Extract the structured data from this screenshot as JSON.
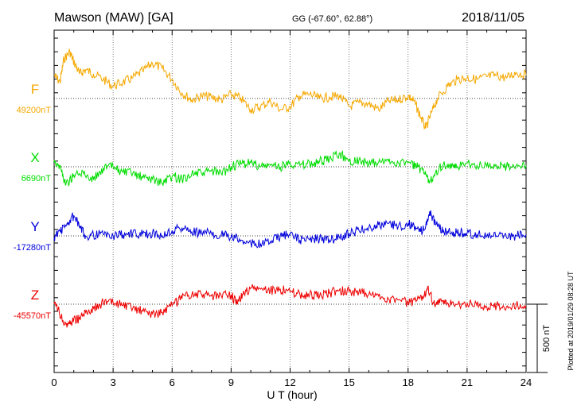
{
  "header": {
    "station": "Mawson (MAW)  [GA]",
    "coords": "GG (-67.60°,  62.88°)",
    "date": "2018/11/05"
  },
  "footer": {
    "plotted_note": "Plotted at 2019/01/29 08:28 UT",
    "scale_label": "500 nT"
  },
  "chart_data": {
    "type": "line",
    "xlabel": "U T (hour)",
    "xlim": [
      0,
      24
    ],
    "xticks": [
      0,
      3,
      6,
      9,
      12,
      15,
      18,
      21,
      24
    ],
    "xtick_labels": [
      "0",
      "3",
      "6",
      "9",
      "12",
      "15",
      "18",
      "21",
      "24"
    ],
    "grid": true,
    "scale_bar_nT": 500,
    "series": [
      {
        "name": "F",
        "baseline_label": "49200nT",
        "baseline_nT": 49200,
        "color": "#f5a800",
        "points": [
          [
            0,
            49370
          ],
          [
            0.3,
            49320
          ],
          [
            0.5,
            49490
          ],
          [
            0.8,
            49540
          ],
          [
            1.0,
            49470
          ],
          [
            1.3,
            49380
          ],
          [
            1.6,
            49410
          ],
          [
            2.0,
            49380
          ],
          [
            2.5,
            49340
          ],
          [
            3.0,
            49290
          ],
          [
            3.5,
            49320
          ],
          [
            4.0,
            49350
          ],
          [
            4.5,
            49400
          ],
          [
            5.0,
            49460
          ],
          [
            5.5,
            49420
          ],
          [
            6.0,
            49340
          ],
          [
            6.5,
            49240
          ],
          [
            7.0,
            49190
          ],
          [
            7.5,
            49220
          ],
          [
            8.0,
            49210
          ],
          [
            8.5,
            49190
          ],
          [
            9.0,
            49230
          ],
          [
            9.5,
            49200
          ],
          [
            10.0,
            49120
          ],
          [
            10.5,
            49140
          ],
          [
            11.0,
            49180
          ],
          [
            11.5,
            49120
          ],
          [
            12.0,
            49140
          ],
          [
            12.5,
            49220
          ],
          [
            13.0,
            49230
          ],
          [
            13.5,
            49200
          ],
          [
            14.0,
            49210
          ],
          [
            14.5,
            49220
          ],
          [
            15.0,
            49140
          ],
          [
            15.5,
            49170
          ],
          [
            16.0,
            49160
          ],
          [
            16.5,
            49120
          ],
          [
            17.0,
            49180
          ],
          [
            17.5,
            49190
          ],
          [
            18.0,
            49220
          ],
          [
            18.3,
            49180
          ],
          [
            18.6,
            49080
          ],
          [
            18.9,
            48980
          ],
          [
            19.2,
            49100
          ],
          [
            19.5,
            49200
          ],
          [
            20.0,
            49290
          ],
          [
            20.5,
            49340
          ],
          [
            21.0,
            49350
          ],
          [
            21.5,
            49340
          ],
          [
            22.0,
            49360
          ],
          [
            22.5,
            49370
          ],
          [
            23.0,
            49350
          ],
          [
            23.5,
            49390
          ],
          [
            24.0,
            49370
          ]
        ]
      },
      {
        "name": "X",
        "baseline_label": "6690nT",
        "baseline_nT": 6690,
        "color": "#00dd00",
        "points": [
          [
            0,
            6740
          ],
          [
            0.3,
            6690
          ],
          [
            0.6,
            6560
          ],
          [
            1.0,
            6630
          ],
          [
            1.5,
            6640
          ],
          [
            2.0,
            6600
          ],
          [
            2.5,
            6680
          ],
          [
            3.0,
            6690
          ],
          [
            3.5,
            6650
          ],
          [
            4.0,
            6640
          ],
          [
            4.5,
            6610
          ],
          [
            5.0,
            6600
          ],
          [
            5.5,
            6570
          ],
          [
            6.0,
            6620
          ],
          [
            6.5,
            6600
          ],
          [
            7.0,
            6640
          ],
          [
            7.5,
            6640
          ],
          [
            8.0,
            6660
          ],
          [
            8.5,
            6640
          ],
          [
            9.0,
            6690
          ],
          [
            9.5,
            6710
          ],
          [
            10.0,
            6720
          ],
          [
            10.5,
            6690
          ],
          [
            11.0,
            6700
          ],
          [
            11.5,
            6690
          ],
          [
            12.0,
            6720
          ],
          [
            12.5,
            6700
          ],
          [
            13.0,
            6710
          ],
          [
            13.5,
            6730
          ],
          [
            14.0,
            6740
          ],
          [
            14.5,
            6790
          ],
          [
            15.0,
            6730
          ],
          [
            15.5,
            6740
          ],
          [
            16.0,
            6710
          ],
          [
            16.5,
            6720
          ],
          [
            17.0,
            6730
          ],
          [
            17.5,
            6720
          ],
          [
            18.0,
            6720
          ],
          [
            18.4,
            6700
          ],
          [
            18.8,
            6640
          ],
          [
            19.1,
            6580
          ],
          [
            19.4,
            6650
          ],
          [
            19.8,
            6710
          ],
          [
            20.2,
            6680
          ],
          [
            20.5,
            6690
          ],
          [
            21.0,
            6720
          ],
          [
            21.5,
            6700
          ],
          [
            22.0,
            6690
          ],
          [
            22.5,
            6700
          ],
          [
            23.0,
            6690
          ],
          [
            23.5,
            6700
          ],
          [
            24.0,
            6700
          ]
        ]
      },
      {
        "name": "Y",
        "baseline_label": "-17280nT",
        "baseline_nT": -17280,
        "color": "#0000dd",
        "points": [
          [
            0,
            -17290
          ],
          [
            0.3,
            -17240
          ],
          [
            0.6,
            -17210
          ],
          [
            1.0,
            -17130
          ],
          [
            1.3,
            -17220
          ],
          [
            1.6,
            -17280
          ],
          [
            2.0,
            -17270
          ],
          [
            2.5,
            -17270
          ],
          [
            3.0,
            -17280
          ],
          [
            3.5,
            -17270
          ],
          [
            4.0,
            -17260
          ],
          [
            4.5,
            -17270
          ],
          [
            5.0,
            -17260
          ],
          [
            5.5,
            -17280
          ],
          [
            6.0,
            -17240
          ],
          [
            6.5,
            -17220
          ],
          [
            7.0,
            -17250
          ],
          [
            7.5,
            -17260
          ],
          [
            8.0,
            -17260
          ],
          [
            8.5,
            -17270
          ],
          [
            9.0,
            -17290
          ],
          [
            9.5,
            -17310
          ],
          [
            10.0,
            -17330
          ],
          [
            10.5,
            -17340
          ],
          [
            11.0,
            -17320
          ],
          [
            11.5,
            -17280
          ],
          [
            12.0,
            -17270
          ],
          [
            12.5,
            -17310
          ],
          [
            13.0,
            -17310
          ],
          [
            13.5,
            -17300
          ],
          [
            14.0,
            -17310
          ],
          [
            14.5,
            -17290
          ],
          [
            15.0,
            -17260
          ],
          [
            15.5,
            -17240
          ],
          [
            16.0,
            -17220
          ],
          [
            16.5,
            -17200
          ],
          [
            17.0,
            -17190
          ],
          [
            17.5,
            -17210
          ],
          [
            18.0,
            -17190
          ],
          [
            18.4,
            -17230
          ],
          [
            18.8,
            -17240
          ],
          [
            19.1,
            -17100
          ],
          [
            19.4,
            -17200
          ],
          [
            19.8,
            -17240
          ],
          [
            20.2,
            -17260
          ],
          [
            20.6,
            -17260
          ],
          [
            21.0,
            -17260
          ],
          [
            21.5,
            -17270
          ],
          [
            22.0,
            -17280
          ],
          [
            22.5,
            -17280
          ],
          [
            23.0,
            -17290
          ],
          [
            23.5,
            -17280
          ],
          [
            24.0,
            -17270
          ]
        ]
      },
      {
        "name": "Z",
        "baseline_label": "-45570nT",
        "baseline_nT": -45570,
        "color": "#ee0000",
        "points": [
          [
            0,
            -45570
          ],
          [
            0.2,
            -45610
          ],
          [
            0.4,
            -45680
          ],
          [
            0.7,
            -45720
          ],
          [
            1.0,
            -45680
          ],
          [
            1.3,
            -45670
          ],
          [
            1.6,
            -45630
          ],
          [
            2.0,
            -45600
          ],
          [
            2.5,
            -45560
          ],
          [
            3.0,
            -45560
          ],
          [
            3.5,
            -45580
          ],
          [
            4.0,
            -45600
          ],
          [
            4.5,
            -45620
          ],
          [
            5.0,
            -45640
          ],
          [
            5.5,
            -45630
          ],
          [
            6.0,
            -45580
          ],
          [
            6.5,
            -45530
          ],
          [
            7.0,
            -45500
          ],
          [
            7.5,
            -45500
          ],
          [
            8.0,
            -45510
          ],
          [
            8.5,
            -45510
          ],
          [
            9.0,
            -45500
          ],
          [
            9.3,
            -45570
          ],
          [
            9.6,
            -45500
          ],
          [
            10.0,
            -45450
          ],
          [
            10.5,
            -45460
          ],
          [
            11.0,
            -45470
          ],
          [
            11.5,
            -45460
          ],
          [
            12.0,
            -45480
          ],
          [
            12.5,
            -45500
          ],
          [
            13.0,
            -45500
          ],
          [
            13.5,
            -45510
          ],
          [
            14.0,
            -45490
          ],
          [
            14.5,
            -45470
          ],
          [
            15.0,
            -45480
          ],
          [
            15.5,
            -45480
          ],
          [
            16.0,
            -45500
          ],
          [
            16.5,
            -45510
          ],
          [
            17.0,
            -45530
          ],
          [
            17.5,
            -45540
          ],
          [
            18.0,
            -45560
          ],
          [
            18.4,
            -45550
          ],
          [
            18.8,
            -45510
          ],
          [
            19.0,
            -45440
          ],
          [
            19.3,
            -45560
          ],
          [
            19.6,
            -45560
          ],
          [
            20.0,
            -45560
          ],
          [
            20.5,
            -45570
          ],
          [
            21.0,
            -45560
          ],
          [
            21.5,
            -45580
          ],
          [
            22.0,
            -45590
          ],
          [
            22.5,
            -45580
          ],
          [
            23.0,
            -45590
          ],
          [
            23.5,
            -45580
          ],
          [
            24.0,
            -45580
          ]
        ]
      }
    ]
  }
}
